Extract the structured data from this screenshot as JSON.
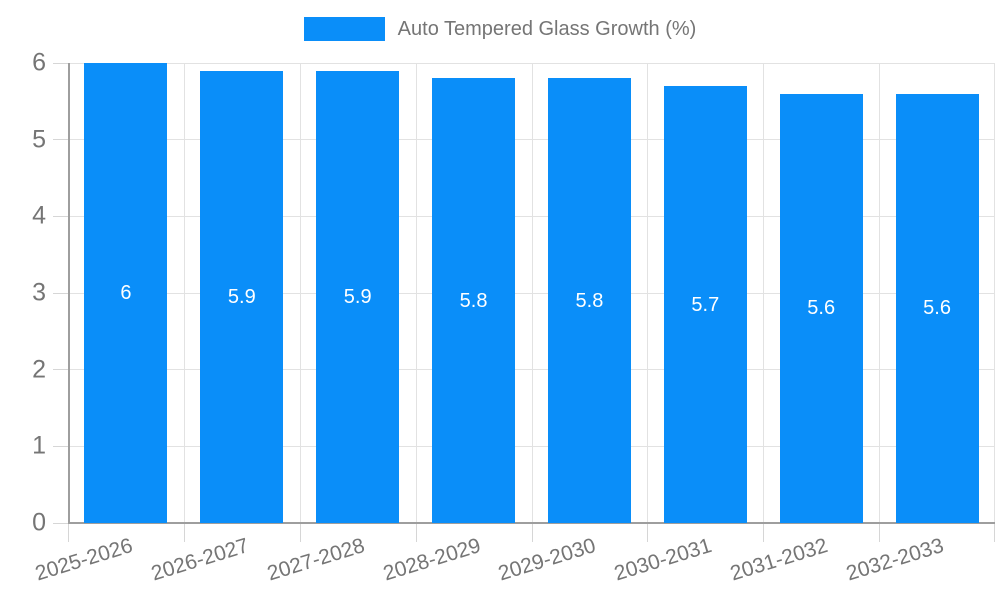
{
  "chart_data": {
    "type": "bar",
    "title": "",
    "legend": "Auto Tempered Glass Growth (%)",
    "legend_position": "top-center",
    "categories": [
      "2025-2026",
      "2026-2027",
      "2027-2028",
      "2028-2029",
      "2029-2030",
      "2030-2031",
      "2031-2032",
      "2032-2033"
    ],
    "values": [
      6,
      5.9,
      5.9,
      5.8,
      5.8,
      5.7,
      5.6,
      5.6
    ],
    "value_labels": [
      "6",
      "5.9",
      "5.9",
      "5.8",
      "5.8",
      "5.7",
      "5.6",
      "5.6"
    ],
    "xlabel": "",
    "ylabel": "",
    "ylim": [
      0,
      6
    ],
    "yticks": [
      "0",
      "1",
      "2",
      "3",
      "4",
      "5",
      "6"
    ],
    "grid": "horizontal and vertical category boundaries",
    "bar_color": "#0a8ef9",
    "text_color": "#757575",
    "grid_color": "#e2e2e2",
    "axis_color": "#9e9e9e",
    "value_label_color": "#ffffff"
  }
}
